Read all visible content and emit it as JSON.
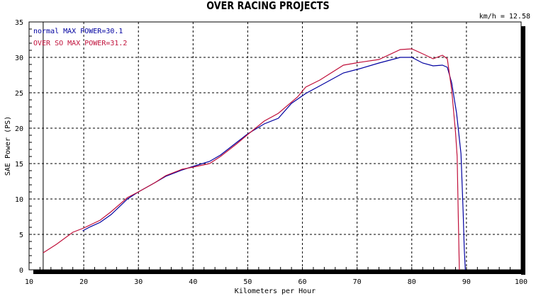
{
  "chart_data": {
    "type": "line",
    "title": "OVER RACING PROJECTS",
    "xlabel": "Kilometers per Hour",
    "ylabel": "SAE Power (PS)",
    "xlim": [
      10,
      100
    ],
    "ylim": [
      0,
      35
    ],
    "xticks": [
      10,
      20,
      30,
      40,
      50,
      60,
      70,
      80,
      90,
      100
    ],
    "yticks": [
      0,
      5,
      10,
      15,
      20,
      25,
      30,
      35
    ],
    "grid": true,
    "legend_placement": "top-left",
    "marker_label": "km/h = 12.58",
    "marker_x": 12.58,
    "series": [
      {
        "name": "normal",
        "legend": "normal  MAX POWER=30.1",
        "color": "#0000a0",
        "x": [
          19.8,
          21,
          23,
          25,
          28,
          30,
          33,
          35,
          38,
          40,
          43,
          45,
          48,
          50,
          53,
          55.6,
          58,
          60.6,
          63,
          67.5,
          70.5,
          74,
          77.9,
          80,
          82,
          83.9,
          85.6,
          86.5,
          87.3,
          88.2,
          89,
          89.4,
          89.6,
          89.8
        ],
        "y": [
          5.5,
          6.0,
          6.7,
          7.8,
          10.0,
          11.0,
          12.3,
          13.2,
          14.1,
          14.6,
          15.3,
          16.2,
          18.0,
          19.2,
          20.6,
          21.4,
          23.5,
          24.9,
          25.9,
          27.8,
          28.4,
          29.2,
          30.0,
          30.0,
          29.2,
          28.8,
          28.9,
          28.6,
          26.4,
          22.1,
          16.4,
          8,
          3,
          0
        ]
      },
      {
        "name": "OVER SO",
        "legend": "OVER SO  MAX POWER=31.2",
        "color": "#c0103a",
        "x": [
          12.58,
          15,
          18,
          20,
          23,
          25,
          28,
          30,
          33,
          35,
          38,
          40,
          43,
          45,
          48,
          50,
          53,
          55.6,
          59.1,
          60.6,
          63.2,
          67.5,
          70.5,
          74,
          77.9,
          80,
          82,
          83.9,
          85.6,
          86.5,
          87.3,
          88,
          88.3,
          88.5,
          88.7
        ],
        "y": [
          2.4,
          3.6,
          5.3,
          5.9,
          7.0,
          8.2,
          10.2,
          11.0,
          12.3,
          13.3,
          14.2,
          14.5,
          15.0,
          16.0,
          17.8,
          19.1,
          21.0,
          22.1,
          24.4,
          25.8,
          26.8,
          28.9,
          29.3,
          29.7,
          31.1,
          31.2,
          30.5,
          29.8,
          30.3,
          29.8,
          25.4,
          19.4,
          16,
          8,
          0
        ]
      }
    ]
  }
}
